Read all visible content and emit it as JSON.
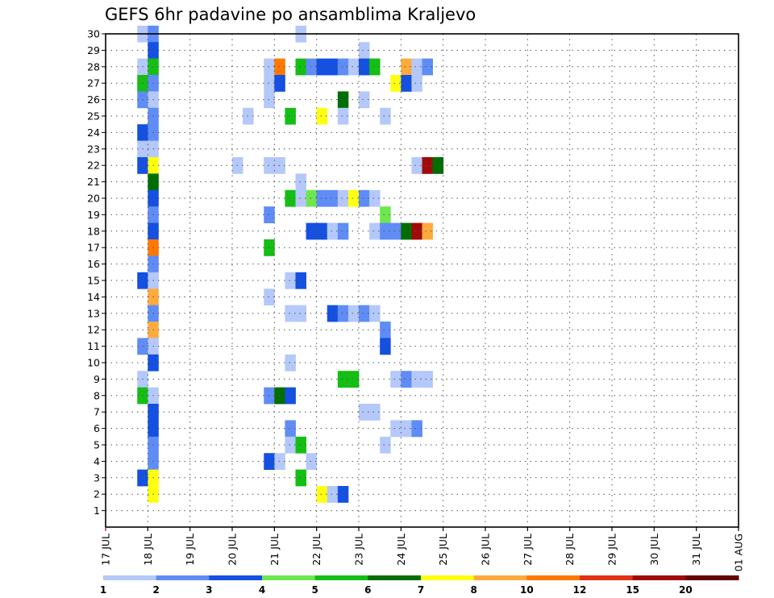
{
  "chart_data": {
    "type": "heatmap",
    "title": "GEFS 6hr padavine po ansamblima Kraljevo",
    "xlabel": "",
    "ylabel": "",
    "y_ticks": [
      1,
      2,
      3,
      4,
      5,
      6,
      7,
      8,
      9,
      10,
      11,
      12,
      13,
      14,
      15,
      16,
      17,
      18,
      19,
      20,
      21,
      22,
      23,
      24,
      25,
      26,
      27,
      28,
      29,
      30
    ],
    "x_tick_labels": [
      "17 JUL",
      "18 JUL",
      "19 JUL",
      "20 JUL",
      "21 JUL",
      "22 JUL",
      "23 JUL",
      "24 JUL",
      "25 JUL",
      "26 JUL",
      "27 JUL",
      "28 JUL",
      "29 JUL",
      "30 JUL",
      "31 JUL",
      "01 AUG"
    ],
    "x_unit": "6-hour step from 17 JUL 00Z",
    "grid": true,
    "legend": {
      "placement": "bottom",
      "labels": [
        "1",
        "2",
        "3",
        "4",
        "5",
        "6",
        "7",
        "8",
        "10",
        "12",
        "15",
        "20"
      ],
      "colors": [
        "#b4c8fa",
        "#5f8cf5",
        "#1450e1",
        "#6ee650",
        "#14be14",
        "#006e00",
        "#ffff0f",
        "#ffaa3c",
        "#ff7800",
        "#e13214",
        "#a00a0a",
        "#640000"
      ]
    },
    "cells": [
      [
        30,
        3,
        1
      ],
      [
        30,
        4,
        2
      ],
      [
        30,
        18,
        1
      ],
      [
        29,
        4,
        3
      ],
      [
        29,
        24,
        1
      ],
      [
        28,
        3,
        1
      ],
      [
        28,
        4,
        5
      ],
      [
        28,
        15,
        1
      ],
      [
        28,
        16,
        9
      ],
      [
        28,
        18,
        5
      ],
      [
        28,
        19,
        2
      ],
      [
        28,
        20,
        3
      ],
      [
        28,
        21,
        3
      ],
      [
        28,
        22,
        2
      ],
      [
        28,
        23,
        1
      ],
      [
        28,
        24,
        3
      ],
      [
        28,
        25,
        5
      ],
      [
        28,
        28,
        8
      ],
      [
        28,
        29,
        1
      ],
      [
        28,
        30,
        2
      ],
      [
        27,
        3,
        5
      ],
      [
        27,
        4,
        2
      ],
      [
        27,
        15,
        1
      ],
      [
        27,
        16,
        3
      ],
      [
        27,
        27,
        7
      ],
      [
        27,
        28,
        3
      ],
      [
        27,
        29,
        1
      ],
      [
        26,
        3,
        2
      ],
      [
        26,
        4,
        1
      ],
      [
        26,
        15,
        1
      ],
      [
        26,
        22,
        6
      ],
      [
        26,
        24,
        1
      ],
      [
        25,
        4,
        2
      ],
      [
        25,
        13,
        1
      ],
      [
        25,
        17,
        5
      ],
      [
        25,
        20,
        7
      ],
      [
        25,
        22,
        1
      ],
      [
        25,
        26,
        1
      ],
      [
        24,
        3,
        3
      ],
      [
        24,
        4,
        2
      ],
      [
        23,
        3,
        1
      ],
      [
        23,
        4,
        1
      ],
      [
        22,
        3,
        3
      ],
      [
        22,
        4,
        7
      ],
      [
        22,
        12,
        1
      ],
      [
        22,
        15,
        1
      ],
      [
        22,
        16,
        1
      ],
      [
        22,
        29,
        1
      ],
      [
        22,
        30,
        11
      ],
      [
        22,
        31,
        6
      ],
      [
        21,
        4,
        6
      ],
      [
        21,
        18,
        1
      ],
      [
        20,
        4,
        3
      ],
      [
        20,
        17,
        5
      ],
      [
        20,
        18,
        1
      ],
      [
        20,
        19,
        4
      ],
      [
        20,
        20,
        2
      ],
      [
        20,
        21,
        2
      ],
      [
        20,
        22,
        1
      ],
      [
        20,
        23,
        7
      ],
      [
        20,
        24,
        2
      ],
      [
        20,
        25,
        1
      ],
      [
        19,
        4,
        2
      ],
      [
        19,
        15,
        2
      ],
      [
        19,
        26,
        4
      ],
      [
        18,
        4,
        3
      ],
      [
        18,
        19,
        3
      ],
      [
        18,
        20,
        3
      ],
      [
        18,
        21,
        1
      ],
      [
        18,
        22,
        2
      ],
      [
        18,
        25,
        1
      ],
      [
        18,
        26,
        2
      ],
      [
        18,
        27,
        2
      ],
      [
        18,
        28,
        6
      ],
      [
        18,
        29,
        11
      ],
      [
        18,
        30,
        8
      ],
      [
        17,
        4,
        9
      ],
      [
        17,
        15,
        5
      ],
      [
        16,
        4,
        2
      ],
      [
        15,
        3,
        3
      ],
      [
        15,
        4,
        1
      ],
      [
        15,
        17,
        1
      ],
      [
        15,
        18,
        3
      ],
      [
        14,
        4,
        8
      ],
      [
        14,
        15,
        1
      ],
      [
        13,
        4,
        2
      ],
      [
        13,
        17,
        1
      ],
      [
        13,
        18,
        1
      ],
      [
        13,
        21,
        3
      ],
      [
        13,
        22,
        2
      ],
      [
        13,
        23,
        1
      ],
      [
        13,
        24,
        2
      ],
      [
        13,
        25,
        1
      ],
      [
        12,
        4,
        8
      ],
      [
        12,
        26,
        2
      ],
      [
        11,
        3,
        2
      ],
      [
        11,
        4,
        1
      ],
      [
        11,
        26,
        3
      ],
      [
        10,
        4,
        3
      ],
      [
        10,
        17,
        1
      ],
      [
        9,
        3,
        1
      ],
      [
        9,
        22,
        5
      ],
      [
        9,
        23,
        5
      ],
      [
        9,
        27,
        1
      ],
      [
        9,
        28,
        2
      ],
      [
        9,
        29,
        1
      ],
      [
        9,
        30,
        1
      ],
      [
        8,
        3,
        5
      ],
      [
        8,
        4,
        1
      ],
      [
        8,
        15,
        2
      ],
      [
        8,
        16,
        6
      ],
      [
        8,
        17,
        3
      ],
      [
        7,
        4,
        3
      ],
      [
        7,
        24,
        1
      ],
      [
        7,
        25,
        1
      ],
      [
        6,
        4,
        3
      ],
      [
        6,
        17,
        2
      ],
      [
        6,
        27,
        1
      ],
      [
        6,
        28,
        1
      ],
      [
        6,
        29,
        2
      ],
      [
        5,
        4,
        2
      ],
      [
        5,
        17,
        1
      ],
      [
        5,
        18,
        5
      ],
      [
        5,
        26,
        1
      ],
      [
        4,
        4,
        2
      ],
      [
        4,
        15,
        3
      ],
      [
        4,
        16,
        1
      ],
      [
        4,
        19,
        1
      ],
      [
        3,
        3,
        3
      ],
      [
        3,
        4,
        7
      ],
      [
        3,
        18,
        5
      ],
      [
        2,
        4,
        7
      ],
      [
        2,
        20,
        7
      ],
      [
        2,
        21,
        1
      ],
      [
        2,
        22,
        3
      ]
    ],
    "cells_format": "[member, step, colorIndex(1-based)]"
  }
}
